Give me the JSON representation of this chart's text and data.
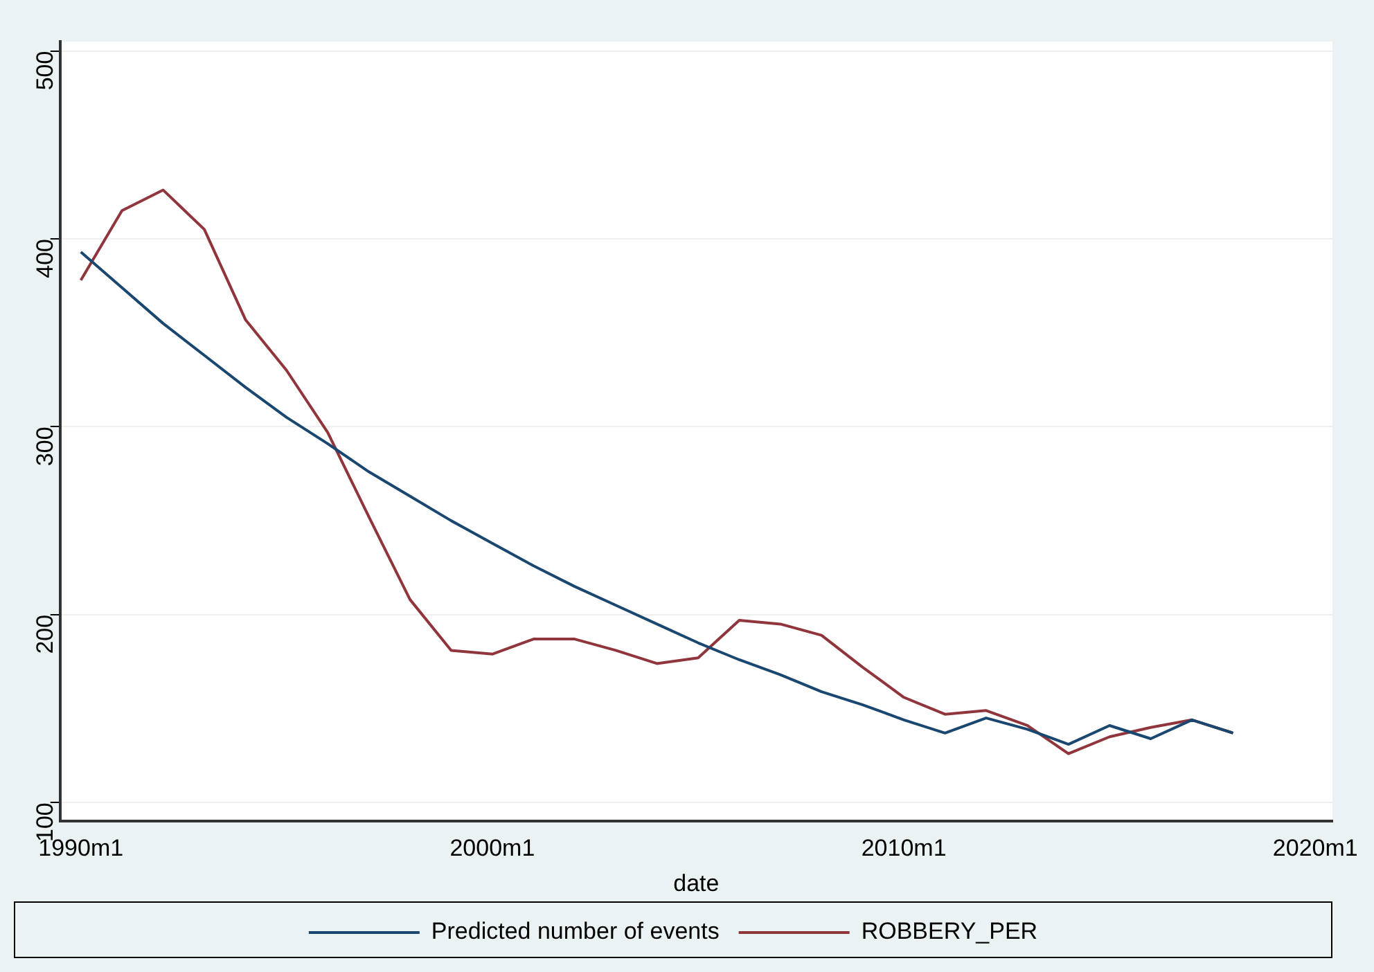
{
  "chart_data": {
    "type": "line",
    "xlabel": "date",
    "x": [
      "1990-01",
      "1991-01",
      "1992-01",
      "1993-01",
      "1994-01",
      "1995-01",
      "1996-01",
      "1997-01",
      "1998-01",
      "1999-01",
      "2000-01",
      "2001-01",
      "2002-01",
      "2003-01",
      "2004-01",
      "2005-01",
      "2006-01",
      "2007-01",
      "2008-01",
      "2009-01",
      "2010-01",
      "2011-01",
      "2012-01",
      "2013-01",
      "2014-01",
      "2015-01",
      "2016-01",
      "2017-01",
      "2018-01"
    ],
    "series": [
      {
        "name": "Predicted number of events",
        "color": "#1a476f",
        "values": [
          393,
          374,
          355,
          338,
          321,
          305,
          291,
          276,
          263,
          250,
          238,
          226,
          215,
          205,
          195,
          185,
          176,
          168,
          159,
          152,
          144,
          137,
          145,
          139,
          131,
          141,
          134,
          144,
          137
        ]
      },
      {
        "name": "ROBBERY_PER",
        "color": "#90353b",
        "values": [
          378,
          415,
          426,
          405,
          357,
          330,
          297,
          252,
          208,
          181,
          179,
          187,
          187,
          181,
          174,
          177,
          197,
          195,
          189,
          172,
          156,
          147,
          149,
          141,
          126,
          135,
          140,
          144,
          137
        ]
      }
    ],
    "xlim": [
      "1989-07",
      "2020-06"
    ],
    "xticks": [
      {
        "value": "1990-01",
        "label": "1990m1"
      },
      {
        "value": "2000-01",
        "label": "2000m1"
      },
      {
        "value": "2010-01",
        "label": "2010m1"
      },
      {
        "value": "2020-01",
        "label": "2020m1"
      }
    ],
    "ylim": [
      90,
      505
    ],
    "yticks": [
      100,
      200,
      300,
      400,
      500
    ],
    "grid": "y",
    "legend": "bottom",
    "marker": "none",
    "line_style": "solid"
  }
}
